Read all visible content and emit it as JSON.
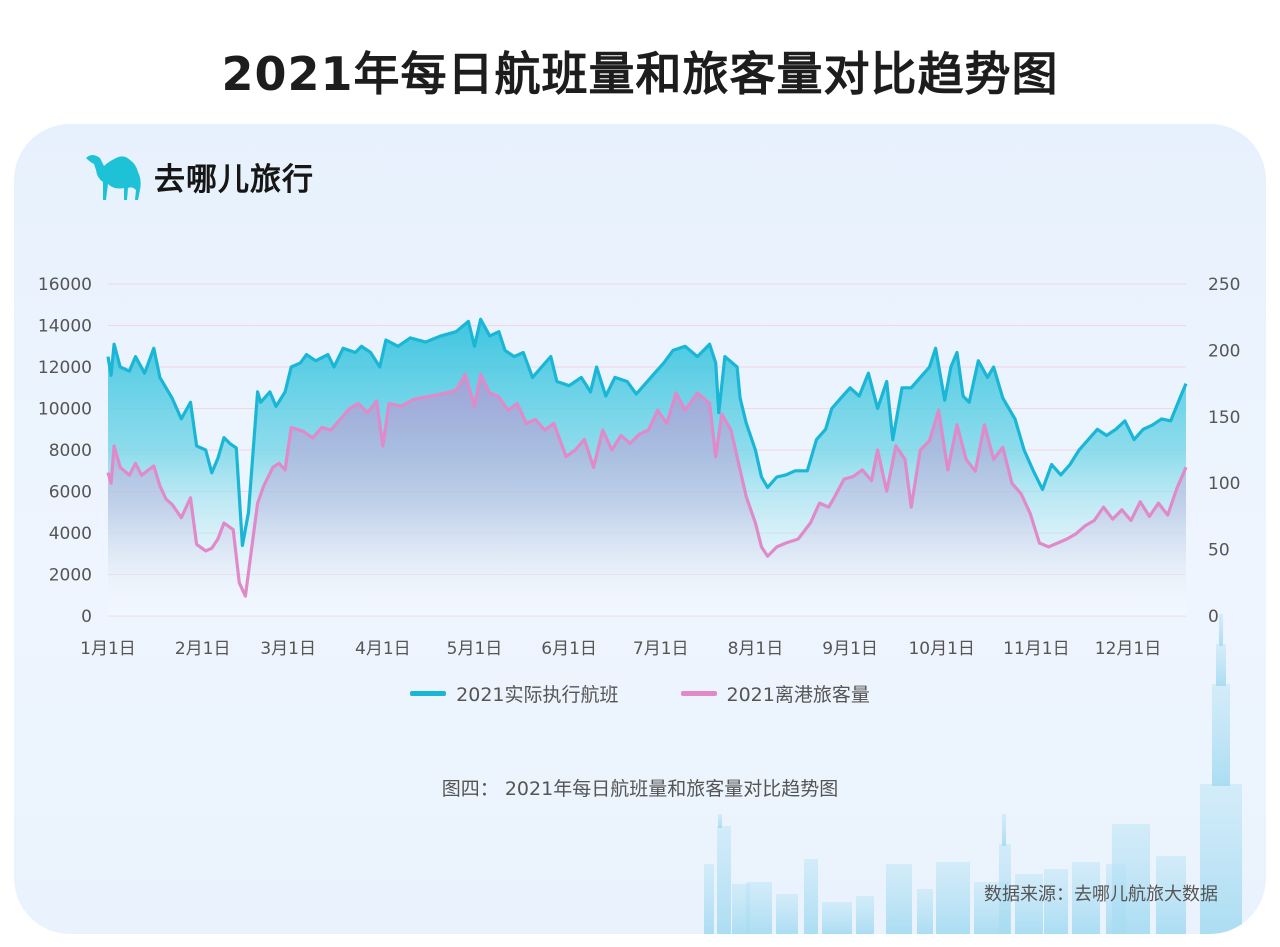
{
  "title": "2021年每日航班量和旅客量对比趋势图",
  "brand": {
    "name": "去哪儿旅行",
    "logo_icon": "camel-logo-icon",
    "color": "#1ec2d6"
  },
  "caption": "图四：  2021年每日航班量和旅客量对比趋势图",
  "source": "数据来源：去哪儿航旅大数据",
  "chart_data": {
    "type": "line",
    "title": "2021年每日航班量和旅客量对比趋势图",
    "x_axis": {
      "type": "date",
      "start": "2021-01-01",
      "end": "2021-12-20",
      "tick_labels": [
        "1月1日",
        "2月1日",
        "3月1日",
        "4月1日",
        "5月1日",
        "6月1日",
        "7月1日",
        "8月1日",
        "9月1日",
        "10月1日",
        "11月1日",
        "12月1日"
      ],
      "tick_dates": [
        "2021-01-01",
        "2021-02-01",
        "2021-03-01",
        "2021-04-01",
        "2021-05-01",
        "2021-06-01",
        "2021-07-01",
        "2021-08-01",
        "2021-09-01",
        "2021-10-01",
        "2021-11-01",
        "2021-12-01"
      ]
    },
    "y_left": {
      "ylim": [
        0,
        16000
      ],
      "ticks": [
        "0",
        "2000",
        "4000",
        "6000",
        "8000",
        "10000",
        "12000",
        "14000",
        "16000"
      ]
    },
    "y_right": {
      "ylim": [
        0,
        250
      ],
      "ticks": [
        "0",
        "50",
        "100",
        "150",
        "200",
        "250"
      ]
    },
    "grid": true,
    "legend_position": "bottom-center",
    "series": [
      {
        "name": "2021实际执行航班",
        "axis": "left",
        "color": "#1ab6d6",
        "points": [
          [
            "2021-01-01",
            12500
          ],
          [
            "2021-01-02",
            11600
          ],
          [
            "2021-01-03",
            13100
          ],
          [
            "2021-01-05",
            12000
          ],
          [
            "2021-01-08",
            11800
          ],
          [
            "2021-01-10",
            12500
          ],
          [
            "2021-01-13",
            11700
          ],
          [
            "2021-01-16",
            12900
          ],
          [
            "2021-01-18",
            11500
          ],
          [
            "2021-01-20",
            11000
          ],
          [
            "2021-01-22",
            10500
          ],
          [
            "2021-01-25",
            9500
          ],
          [
            "2021-01-28",
            10300
          ],
          [
            "2021-01-30",
            8200
          ],
          [
            "2021-02-02",
            8000
          ],
          [
            "2021-02-04",
            6900
          ],
          [
            "2021-02-06",
            7600
          ],
          [
            "2021-02-08",
            8600
          ],
          [
            "2021-02-10",
            8300
          ],
          [
            "2021-02-12",
            8100
          ],
          [
            "2021-02-14",
            3400
          ],
          [
            "2021-02-16",
            5000
          ],
          [
            "2021-02-19",
            10800
          ],
          [
            "2021-02-20",
            10300
          ],
          [
            "2021-02-23",
            10800
          ],
          [
            "2021-02-25",
            10100
          ],
          [
            "2021-02-28",
            10800
          ],
          [
            "2021-03-02",
            12000
          ],
          [
            "2021-03-05",
            12200
          ],
          [
            "2021-03-07",
            12600
          ],
          [
            "2021-03-10",
            12300
          ],
          [
            "2021-03-14",
            12600
          ],
          [
            "2021-03-16",
            12000
          ],
          [
            "2021-03-19",
            12900
          ],
          [
            "2021-03-23",
            12700
          ],
          [
            "2021-03-25",
            13000
          ],
          [
            "2021-03-28",
            12700
          ],
          [
            "2021-03-31",
            12000
          ],
          [
            "2021-04-02",
            13300
          ],
          [
            "2021-04-06",
            13000
          ],
          [
            "2021-04-10",
            13400
          ],
          [
            "2021-04-15",
            13200
          ],
          [
            "2021-04-20",
            13500
          ],
          [
            "2021-04-25",
            13700
          ],
          [
            "2021-04-29",
            14200
          ],
          [
            "2021-05-01",
            13000
          ],
          [
            "2021-05-03",
            14300
          ],
          [
            "2021-05-06",
            13500
          ],
          [
            "2021-05-09",
            13700
          ],
          [
            "2021-05-11",
            12800
          ],
          [
            "2021-05-14",
            12500
          ],
          [
            "2021-05-17",
            12700
          ],
          [
            "2021-05-20",
            11500
          ],
          [
            "2021-05-23",
            12000
          ],
          [
            "2021-05-26",
            12500
          ],
          [
            "2021-05-28",
            11300
          ],
          [
            "2021-06-01",
            11100
          ],
          [
            "2021-06-05",
            11500
          ],
          [
            "2021-06-08",
            10800
          ],
          [
            "2021-06-10",
            12000
          ],
          [
            "2021-06-13",
            10600
          ],
          [
            "2021-06-16",
            11500
          ],
          [
            "2021-06-20",
            11300
          ],
          [
            "2021-06-23",
            10700
          ],
          [
            "2021-06-26",
            11200
          ],
          [
            "2021-06-29",
            11700
          ],
          [
            "2021-07-02",
            12200
          ],
          [
            "2021-07-05",
            12800
          ],
          [
            "2021-07-09",
            13000
          ],
          [
            "2021-07-13",
            12500
          ],
          [
            "2021-07-17",
            13100
          ],
          [
            "2021-07-19",
            12200
          ],
          [
            "2021-07-20",
            9800
          ],
          [
            "2021-07-22",
            12500
          ],
          [
            "2021-07-26",
            12000
          ],
          [
            "2021-07-27",
            10500
          ],
          [
            "2021-07-29",
            9300
          ],
          [
            "2021-08-01",
            8000
          ],
          [
            "2021-08-03",
            6700
          ],
          [
            "2021-08-05",
            6200
          ],
          [
            "2021-08-08",
            6700
          ],
          [
            "2021-08-11",
            6800
          ],
          [
            "2021-08-14",
            7000
          ],
          [
            "2021-08-18",
            7000
          ],
          [
            "2021-08-21",
            8500
          ],
          [
            "2021-08-24",
            9000
          ],
          [
            "2021-08-26",
            10000
          ],
          [
            "2021-08-29",
            10500
          ],
          [
            "2021-09-01",
            11000
          ],
          [
            "2021-09-04",
            10600
          ],
          [
            "2021-09-07",
            11700
          ],
          [
            "2021-09-10",
            10000
          ],
          [
            "2021-09-13",
            11300
          ],
          [
            "2021-09-15",
            8500
          ],
          [
            "2021-09-18",
            11000
          ],
          [
            "2021-09-21",
            11000
          ],
          [
            "2021-09-24",
            11500
          ],
          [
            "2021-09-27",
            12000
          ],
          [
            "2021-09-29",
            12900
          ],
          [
            "2021-10-02",
            10400
          ],
          [
            "2021-10-04",
            12000
          ],
          [
            "2021-10-06",
            12700
          ],
          [
            "2021-10-08",
            10600
          ],
          [
            "2021-10-10",
            10300
          ],
          [
            "2021-10-13",
            12300
          ],
          [
            "2021-10-16",
            11500
          ],
          [
            "2021-10-18",
            12000
          ],
          [
            "2021-10-21",
            10500
          ],
          [
            "2021-10-25",
            9500
          ],
          [
            "2021-10-28",
            8000
          ],
          [
            "2021-10-31",
            7000
          ],
          [
            "2021-11-03",
            6100
          ],
          [
            "2021-11-06",
            7300
          ],
          [
            "2021-11-09",
            6800
          ],
          [
            "2021-11-12",
            7300
          ],
          [
            "2021-11-15",
            8000
          ],
          [
            "2021-11-18",
            8500
          ],
          [
            "2021-11-21",
            9000
          ],
          [
            "2021-11-24",
            8700
          ],
          [
            "2021-11-27",
            9000
          ],
          [
            "2021-11-30",
            9400
          ],
          [
            "2021-12-03",
            8500
          ],
          [
            "2021-12-06",
            9000
          ],
          [
            "2021-12-09",
            9200
          ],
          [
            "2021-12-12",
            9500
          ],
          [
            "2021-12-15",
            9400
          ],
          [
            "2021-12-18",
            10500
          ],
          [
            "2021-12-20",
            11200
          ]
        ]
      },
      {
        "name": "2021离港旅客量",
        "axis": "right",
        "color": "#e08ac9",
        "points": [
          [
            "2021-01-01",
            108
          ],
          [
            "2021-01-02",
            100
          ],
          [
            "2021-01-03",
            128
          ],
          [
            "2021-01-05",
            112
          ],
          [
            "2021-01-08",
            106
          ],
          [
            "2021-01-10",
            115
          ],
          [
            "2021-01-12",
            106
          ],
          [
            "2021-01-16",
            113
          ],
          [
            "2021-01-18",
            98
          ],
          [
            "2021-01-20",
            88
          ],
          [
            "2021-01-22",
            84
          ],
          [
            "2021-01-25",
            74
          ],
          [
            "2021-01-28",
            89
          ],
          [
            "2021-01-30",
            54
          ],
          [
            "2021-02-02",
            49
          ],
          [
            "2021-02-04",
            51
          ],
          [
            "2021-02-06",
            58
          ],
          [
            "2021-02-08",
            70
          ],
          [
            "2021-02-11",
            65
          ],
          [
            "2021-02-13",
            25
          ],
          [
            "2021-02-15",
            15
          ],
          [
            "2021-02-19",
            85
          ],
          [
            "2021-02-21",
            98
          ],
          [
            "2021-02-24",
            112
          ],
          [
            "2021-02-26",
            115
          ],
          [
            "2021-02-28",
            110
          ],
          [
            "2021-03-02",
            142
          ],
          [
            "2021-03-06",
            139
          ],
          [
            "2021-03-09",
            134
          ],
          [
            "2021-03-12",
            142
          ],
          [
            "2021-03-15",
            140
          ],
          [
            "2021-03-18",
            148
          ],
          [
            "2021-03-21",
            156
          ],
          [
            "2021-03-24",
            160
          ],
          [
            "2021-03-27",
            153
          ],
          [
            "2021-03-30",
            162
          ],
          [
            "2021-04-01",
            128
          ],
          [
            "2021-04-03",
            160
          ],
          [
            "2021-04-07",
            158
          ],
          [
            "2021-04-11",
            163
          ],
          [
            "2021-04-15",
            165
          ],
          [
            "2021-04-20",
            167
          ],
          [
            "2021-04-25",
            170
          ],
          [
            "2021-04-28",
            182
          ],
          [
            "2021-05-01",
            158
          ],
          [
            "2021-05-03",
            182
          ],
          [
            "2021-05-06",
            168
          ],
          [
            "2021-05-09",
            165
          ],
          [
            "2021-05-12",
            155
          ],
          [
            "2021-05-15",
            160
          ],
          [
            "2021-05-18",
            145
          ],
          [
            "2021-05-21",
            148
          ],
          [
            "2021-05-24",
            140
          ],
          [
            "2021-05-27",
            145
          ],
          [
            "2021-05-31",
            120
          ],
          [
            "2021-06-03",
            125
          ],
          [
            "2021-06-06",
            133
          ],
          [
            "2021-06-09",
            112
          ],
          [
            "2021-06-12",
            140
          ],
          [
            "2021-06-15",
            125
          ],
          [
            "2021-06-18",
            136
          ],
          [
            "2021-06-21",
            130
          ],
          [
            "2021-06-24",
            137
          ],
          [
            "2021-06-27",
            140
          ],
          [
            "2021-06-30",
            155
          ],
          [
            "2021-07-03",
            145
          ],
          [
            "2021-07-06",
            168
          ],
          [
            "2021-07-09",
            155
          ],
          [
            "2021-07-13",
            168
          ],
          [
            "2021-07-17",
            160
          ],
          [
            "2021-07-19",
            120
          ],
          [
            "2021-07-21",
            152
          ],
          [
            "2021-07-24",
            140
          ],
          [
            "2021-07-27",
            110
          ],
          [
            "2021-07-29",
            90
          ],
          [
            "2021-08-01",
            70
          ],
          [
            "2021-08-03",
            52
          ],
          [
            "2021-08-05",
            45
          ],
          [
            "2021-08-08",
            52
          ],
          [
            "2021-08-11",
            55
          ],
          [
            "2021-08-15",
            58
          ],
          [
            "2021-08-19",
            70
          ],
          [
            "2021-08-22",
            85
          ],
          [
            "2021-08-25",
            82
          ],
          [
            "2021-08-27",
            90
          ],
          [
            "2021-08-30",
            103
          ],
          [
            "2021-09-02",
            105
          ],
          [
            "2021-09-05",
            110
          ],
          [
            "2021-09-08",
            102
          ],
          [
            "2021-09-10",
            125
          ],
          [
            "2021-09-13",
            94
          ],
          [
            "2021-09-16",
            128
          ],
          [
            "2021-09-19",
            118
          ],
          [
            "2021-09-21",
            82
          ],
          [
            "2021-09-24",
            125
          ],
          [
            "2021-09-27",
            132
          ],
          [
            "2021-09-30",
            155
          ],
          [
            "2021-10-03",
            110
          ],
          [
            "2021-10-06",
            144
          ],
          [
            "2021-10-09",
            118
          ],
          [
            "2021-10-12",
            109
          ],
          [
            "2021-10-15",
            144
          ],
          [
            "2021-10-18",
            118
          ],
          [
            "2021-10-21",
            127
          ],
          [
            "2021-10-24",
            100
          ],
          [
            "2021-10-27",
            92
          ],
          [
            "2021-10-30",
            77
          ],
          [
            "2021-11-02",
            55
          ],
          [
            "2021-11-05",
            52
          ],
          [
            "2021-11-08",
            55
          ],
          [
            "2021-11-11",
            58
          ],
          [
            "2021-11-14",
            62
          ],
          [
            "2021-11-17",
            68
          ],
          [
            "2021-11-20",
            72
          ],
          [
            "2021-11-23",
            82
          ],
          [
            "2021-11-26",
            73
          ],
          [
            "2021-11-29",
            80
          ],
          [
            "2021-12-02",
            72
          ],
          [
            "2021-12-05",
            86
          ],
          [
            "2021-12-08",
            75
          ],
          [
            "2021-12-11",
            85
          ],
          [
            "2021-12-14",
            76
          ],
          [
            "2021-12-17",
            96
          ],
          [
            "2021-12-20",
            112
          ]
        ]
      }
    ]
  }
}
